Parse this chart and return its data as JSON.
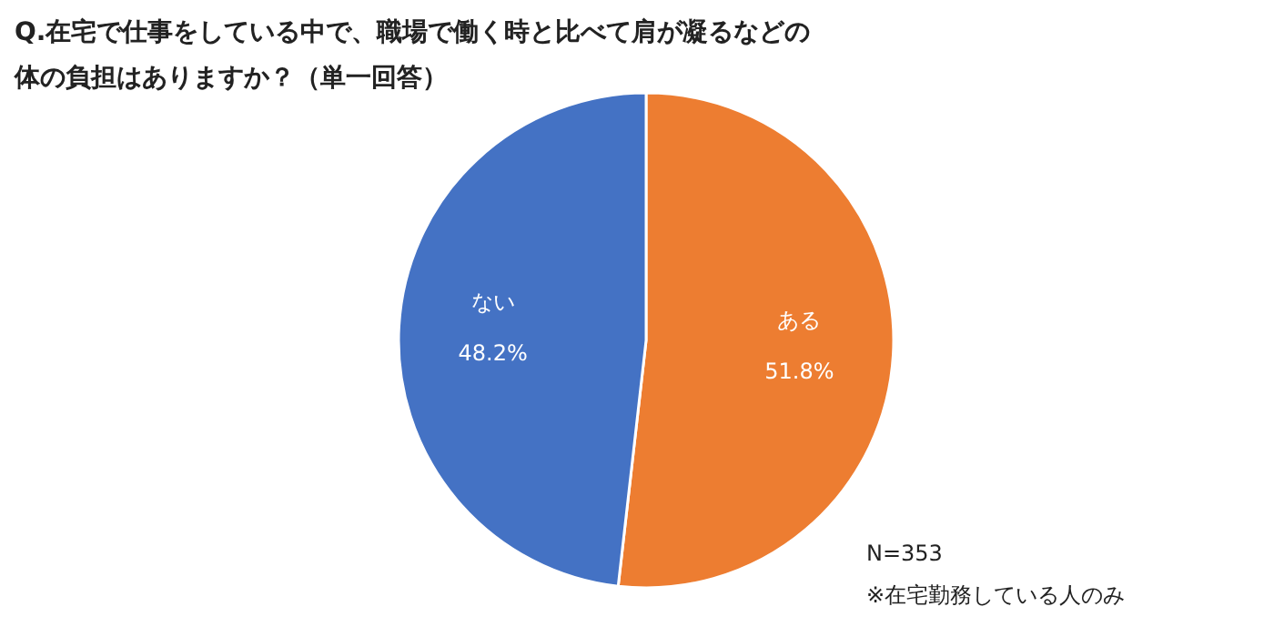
{
  "chart_data": {
    "type": "pie",
    "title": "Q.在宅で仕事をしている中で、職場で働く時と比べて肩が凝るなどの体の負担はありますか？（単一回答）",
    "categories": [
      "ある",
      "ない"
    ],
    "values": [
      51.8,
      48.2
    ],
    "colors": [
      "#ed7d31",
      "#4472c4"
    ],
    "value_labels": [
      "51.8%",
      "48.2%"
    ],
    "annotations": [
      "N=353",
      "※在宅勤務している人のみ"
    ]
  }
}
